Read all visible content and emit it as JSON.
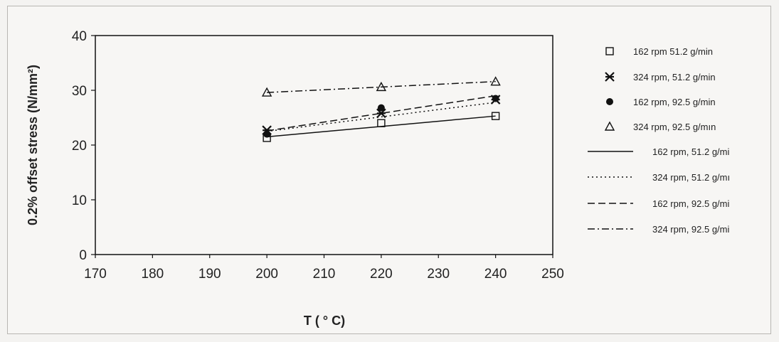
{
  "chart_data": {
    "type": "scatter",
    "xlabel": "T ( ° C)",
    "ylabel": "0.2% offset stress (N/mm²)",
    "xlim": [
      170,
      250
    ],
    "ylim": [
      0,
      40
    ],
    "xticks": [
      "170",
      "180",
      "190",
      "200",
      "210",
      "220",
      "230",
      "240",
      "250"
    ],
    "yticks": [
      "0",
      "10",
      "20",
      "30",
      "40"
    ],
    "grid": false,
    "legend_placement": "right",
    "series": [
      {
        "name": "162 rpm 51.2 g/min",
        "marker": "square-open",
        "x": [
          200,
          220,
          240
        ],
        "y": [
          21.3,
          24.0,
          25.3
        ]
      },
      {
        "name": "324 rpm, 51.2 g/min",
        "marker": "asterisk",
        "x": [
          200,
          220,
          240
        ],
        "y": [
          22.7,
          25.8,
          28.3
        ]
      },
      {
        "name": "162 rpm, 92.5 g/min",
        "marker": "circle-filled",
        "x": [
          200,
          220,
          240
        ],
        "y": [
          22.0,
          26.8,
          28.5
        ]
      },
      {
        "name": "324 rpm, 92.5 g/mın",
        "marker": "triangle-open",
        "x": [
          200,
          220,
          240
        ],
        "y": [
          29.6,
          30.6,
          31.6
        ]
      }
    ],
    "fit_lines": [
      {
        "name": "162 rpm, 51.2 g/mi",
        "style": "solid",
        "x": [
          200,
          240
        ],
        "y": [
          21.5,
          25.3
        ]
      },
      {
        "name": "324 rpm, 51.2 g/mı",
        "style": "dotted",
        "x": [
          200,
          240
        ],
        "y": [
          22.5,
          27.8
        ]
      },
      {
        "name": "162 rpm, 92.5 g/mi",
        "style": "dashed",
        "x": [
          200,
          240
        ],
        "y": [
          22.6,
          29.0
        ]
      },
      {
        "name": "324 rpm, 92.5 g/mi",
        "style": "dashdot",
        "x": [
          200,
          240
        ],
        "y": [
          29.6,
          31.6
        ]
      }
    ]
  }
}
